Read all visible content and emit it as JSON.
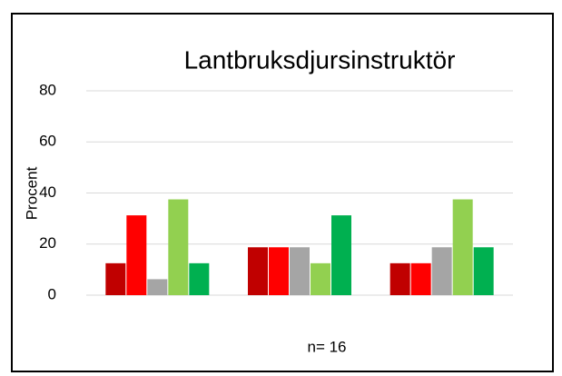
{
  "chart_data": {
    "type": "bar",
    "title": "Lantbruksdjursinstruktör",
    "ylabel": "Procent",
    "annotation": "n= 16",
    "categories": [
      null,
      null,
      null
    ],
    "series": [
      {
        "color": "#c00000",
        "values": [
          12.5,
          18.75,
          12.5
        ]
      },
      {
        "color": "#ff0000",
        "values": [
          31.25,
          18.75,
          12.5
        ]
      },
      {
        "color": "#a5a5a5",
        "values": [
          6.25,
          18.75,
          18.75
        ]
      },
      {
        "color": "#92d050",
        "values": [
          37.5,
          12.5,
          37.5
        ]
      },
      {
        "color": "#00b050",
        "values": [
          12.5,
          31.25,
          18.75
        ]
      }
    ],
    "ylim": [
      0,
      80
    ],
    "yticks": [
      0,
      20,
      40,
      60,
      80
    ],
    "grid": true
  }
}
